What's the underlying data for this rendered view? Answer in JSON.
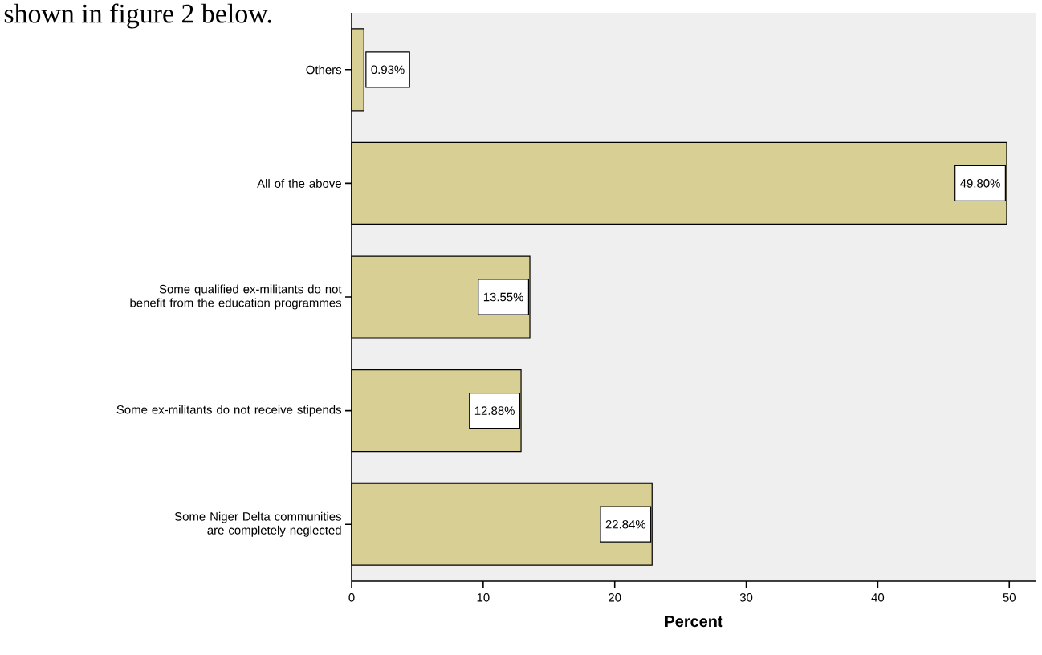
{
  "chart_data": {
    "type": "bar",
    "orientation": "horizontal",
    "categories": [
      "Others",
      "All of the above",
      "Some qualified ex-militants do not benefit from the education programmes",
      "Some ex-militants do not receive stipends",
      "Some Niger Delta communities are completely neglected"
    ],
    "values": [
      0.93,
      49.8,
      13.55,
      12.88,
      22.84
    ],
    "value_labels": [
      "0.93%",
      "49.80%",
      "13.55%",
      "12.88%",
      "22.84%"
    ],
    "color": "#d8cf94",
    "xlabel": "Percent",
    "xlim": [
      0,
      52
    ],
    "xticks": [
      0,
      10,
      20,
      30,
      40,
      50
    ],
    "annotations": [
      "shown in figure 2 below."
    ]
  }
}
